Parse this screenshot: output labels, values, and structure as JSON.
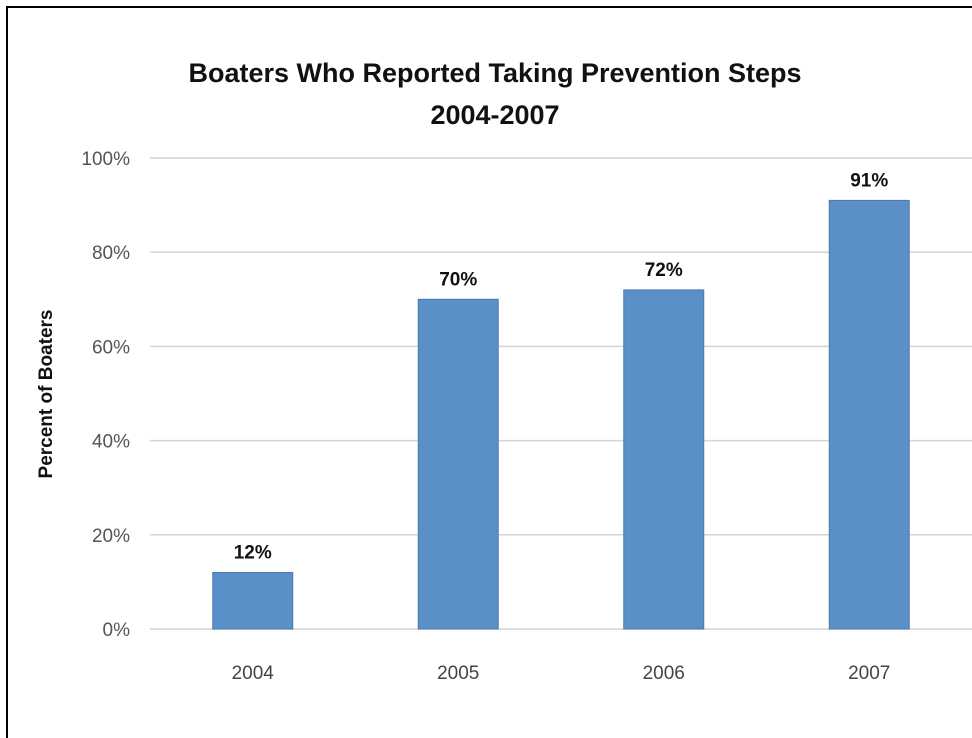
{
  "chart_data": {
    "type": "bar",
    "title": "Boaters Who Reported Taking Prevention Steps",
    "subtitle": "2004-2007",
    "ylabel": "Percent of Boaters",
    "xlabel": "",
    "categories": [
      "2004",
      "2005",
      "2006",
      "2007"
    ],
    "values": [
      12,
      70,
      72,
      91
    ],
    "data_labels": [
      "12%",
      "70%",
      "72%",
      "91%"
    ],
    "y_ticks": [
      "0%",
      "20%",
      "40%",
      "60%",
      "80%",
      "100%"
    ],
    "ylim": [
      0,
      100
    ],
    "grid": true,
    "legend": "none",
    "bar_color": "#5b8fc7"
  }
}
